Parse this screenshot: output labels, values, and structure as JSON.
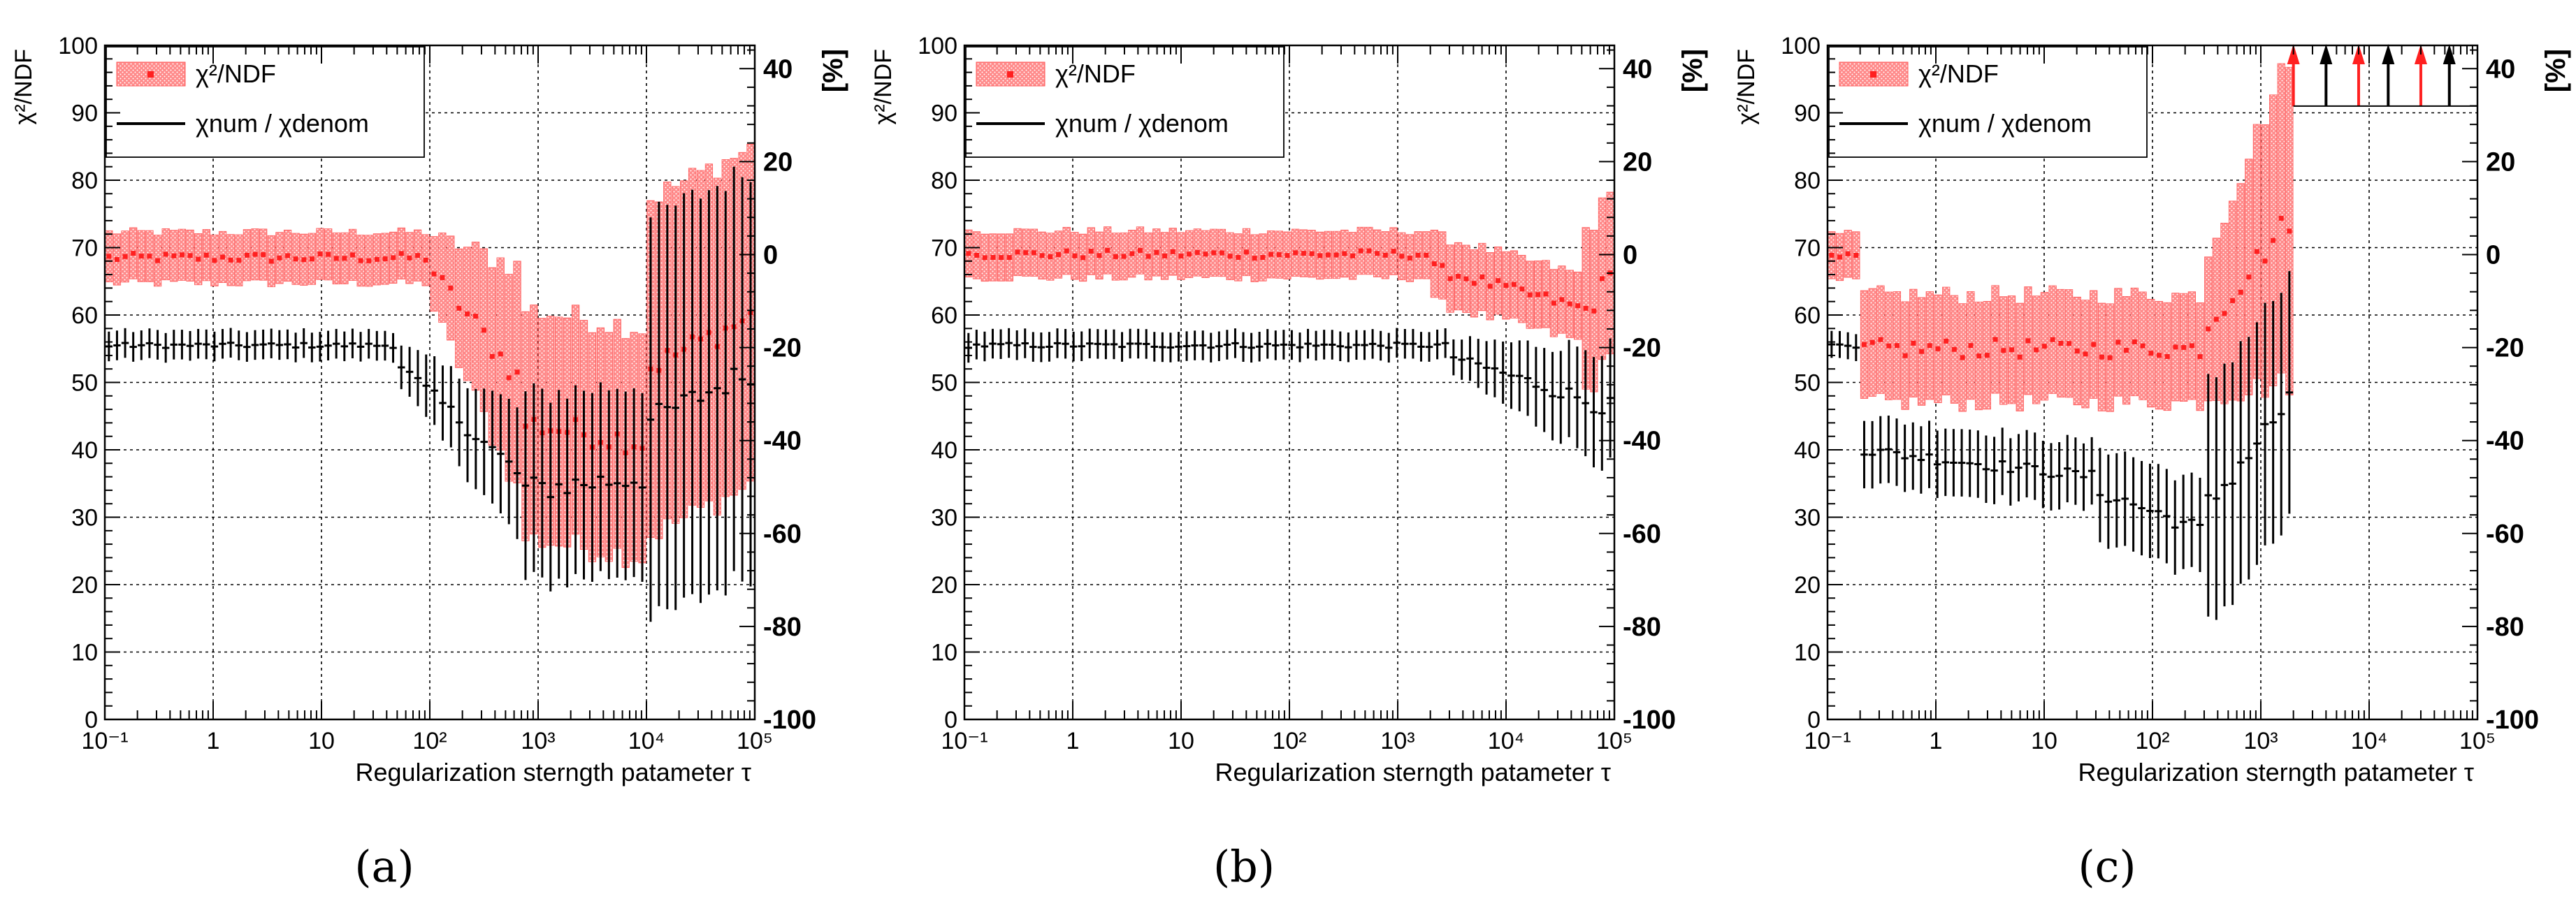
{
  "figure": {
    "panel_labels": [
      "(a)",
      "(b)",
      "(c)"
    ]
  },
  "chart_data": [
    {
      "type": "scatter",
      "panel": "a",
      "xlabel": "Regularization sterngth patameter τ",
      "ylabel_left": "χ²/NDF",
      "ylabel_right": "[%]",
      "xscale": "log",
      "xlim": [
        0.1,
        100000
      ],
      "ylim_left": [
        0,
        100
      ],
      "ylim_right": [
        -100,
        45
      ],
      "xticks": [
        "10⁻¹",
        "1",
        "10",
        "10²",
        "10³",
        "10⁴",
        "10⁵"
      ],
      "yticks_left": [
        "0",
        "10",
        "20",
        "30",
        "40",
        "50",
        "60",
        "70",
        "80",
        "90",
        "100"
      ],
      "yticks_right": [
        "-100",
        "-80",
        "-60",
        "-40",
        "-20",
        "0",
        "20",
        "40"
      ],
      "legend": {
        "placement": "top-left",
        "entries": [
          "χ²/NDF",
          "χnum / χdenom"
        ]
      },
      "series": [
        {
          "name": "χ²/NDF",
          "color": "#ff2020",
          "segments": [
            {
              "x_from": 0.1,
              "x_to": 100,
              "y": 68.5,
              "err": 3.8
            },
            {
              "x_from": 100,
              "x_to": 700,
              "y_from": 67,
              "y_to": 50,
              "err_from": 5,
              "err_to": 17
            },
            {
              "x_from": 700,
              "x_to": 10000,
              "y_from": 44,
              "y_to": 41,
              "err": 17
            },
            {
              "x_from": 10000,
              "x_to": 100000,
              "y_from": 52,
              "y_to": 60,
              "err": 25
            }
          ]
        },
        {
          "name": "χnum / χdenom",
          "color": "#000000",
          "segments": [
            {
              "x_from": 0.1,
              "x_to": 50,
              "y": 55.5,
              "err": 2.2
            },
            {
              "x_from": 50,
              "x_to": 700,
              "y_from": 53,
              "y_to": 36,
              "err_from": 3,
              "err_to": 10
            },
            {
              "x_from": 700,
              "x_to": 10000,
              "y_from": 34,
              "y_to": 36,
              "err": 14
            },
            {
              "x_from": 10000,
              "x_to": 100000,
              "y_from": 44,
              "y_to": 52,
              "err": 30
            }
          ]
        }
      ]
    },
    {
      "type": "scatter",
      "panel": "b",
      "xlabel": "Regularization sterngth patameter τ",
      "ylabel_left": "χ²/NDF",
      "ylabel_right": "[%]",
      "xscale": "log",
      "xlim": [
        0.1,
        100000
      ],
      "ylim_left": [
        0,
        100
      ],
      "ylim_right": [
        -100,
        45
      ],
      "xticks": [
        "10⁻¹",
        "1",
        "10",
        "10²",
        "10³",
        "10⁴",
        "10⁵"
      ],
      "yticks_left": [
        "0",
        "10",
        "20",
        "30",
        "40",
        "50",
        "60",
        "70",
        "80",
        "90",
        "100"
      ],
      "yticks_right": [
        "-100",
        "-80",
        "-60",
        "-40",
        "-20",
        "0",
        "20",
        "40"
      ],
      "legend": {
        "placement": "top-left",
        "entries": [
          "χ²/NDF",
          "χnum / χdenom"
        ]
      },
      "series": [
        {
          "name": "χ²/NDF",
          "color": "#ff2020",
          "segments": [
            {
              "x_from": 0.1,
              "x_to": 2000,
              "y": 69,
              "err": 3.5
            },
            {
              "x_from": 2000,
              "x_to": 50000,
              "y_from": 67,
              "y_to": 61,
              "err": 5
            },
            {
              "x_from": 50000,
              "x_to": 100000,
              "y_from": 60,
              "y_to": 66,
              "err": 12
            }
          ]
        },
        {
          "name": "χnum / χdenom",
          "color": "#000000",
          "segments": [
            {
              "x_from": 0.1,
              "x_to": 3000,
              "y": 55.5,
              "err": 2.2
            },
            {
              "x_from": 3000,
              "x_to": 100000,
              "y_from": 54,
              "y_to": 46,
              "err_from": 2.5,
              "err_to": 9
            }
          ]
        }
      ]
    },
    {
      "type": "scatter",
      "panel": "c",
      "xlabel": "Regularization sterngth patameter τ",
      "ylabel_left": "χ²/NDF",
      "ylabel_right": "[%]",
      "xscale": "log",
      "xlim": [
        0.1,
        100000
      ],
      "ylim_left": [
        0,
        100
      ],
      "ylim_right": [
        -100,
        45
      ],
      "xticks": [
        "10⁻¹",
        "1",
        "10",
        "10²",
        "10³",
        "10⁴",
        "10⁵"
      ],
      "yticks_left": [
        "0",
        "10",
        "20",
        "30",
        "40",
        "50",
        "60",
        "70",
        "80",
        "90",
        "100"
      ],
      "yticks_right": [
        "-100",
        "-80",
        "-60",
        "-40",
        "-20",
        "0",
        "20",
        "40"
      ],
      "legend": {
        "placement": "top-left",
        "entries": [
          "χ²/NDF",
          "χnum / χdenom"
        ]
      },
      "series": [
        {
          "name": "χ²/NDF",
          "color": "#ff2020",
          "segments": [
            {
              "x_from": 0.1,
              "x_to": 0.2,
              "y": 68.5,
              "err": 3.5
            },
            {
              "x_from": 0.2,
              "x_to": 300,
              "y": 55,
              "err": 8
            },
            {
              "x_from": 300,
              "x_to": 2000,
              "y_from": 58,
              "y_to": 75,
              "err_from": 10,
              "err_to": 25
            }
          ]
        },
        {
          "name": "χnum / χdenom",
          "color": "#000000",
          "segments": [
            {
              "x_from": 0.1,
              "x_to": 0.2,
              "y": 55.5,
              "err": 2
            },
            {
              "x_from": 0.2,
              "x_to": 30,
              "y_from": 40,
              "y_to": 36,
              "err": 5
            },
            {
              "x_from": 30,
              "x_to": 300,
              "y_from": 34,
              "y_to": 28,
              "err": 7
            },
            {
              "x_from": 300,
              "x_to": 2000,
              "y_from": 31,
              "y_to": 48,
              "err": 18
            }
          ]
        }
      ],
      "overflow_arrows": [
        {
          "x": 2000,
          "color": "#ff2020"
        },
        {
          "x": 4000,
          "color": "#000000"
        },
        {
          "x": 8000,
          "color": "#ff2020"
        },
        {
          "x": 15000,
          "color": "#000000"
        },
        {
          "x": 30000,
          "color": "#ff2020"
        },
        {
          "x": 55000,
          "color": "#000000"
        }
      ]
    }
  ]
}
